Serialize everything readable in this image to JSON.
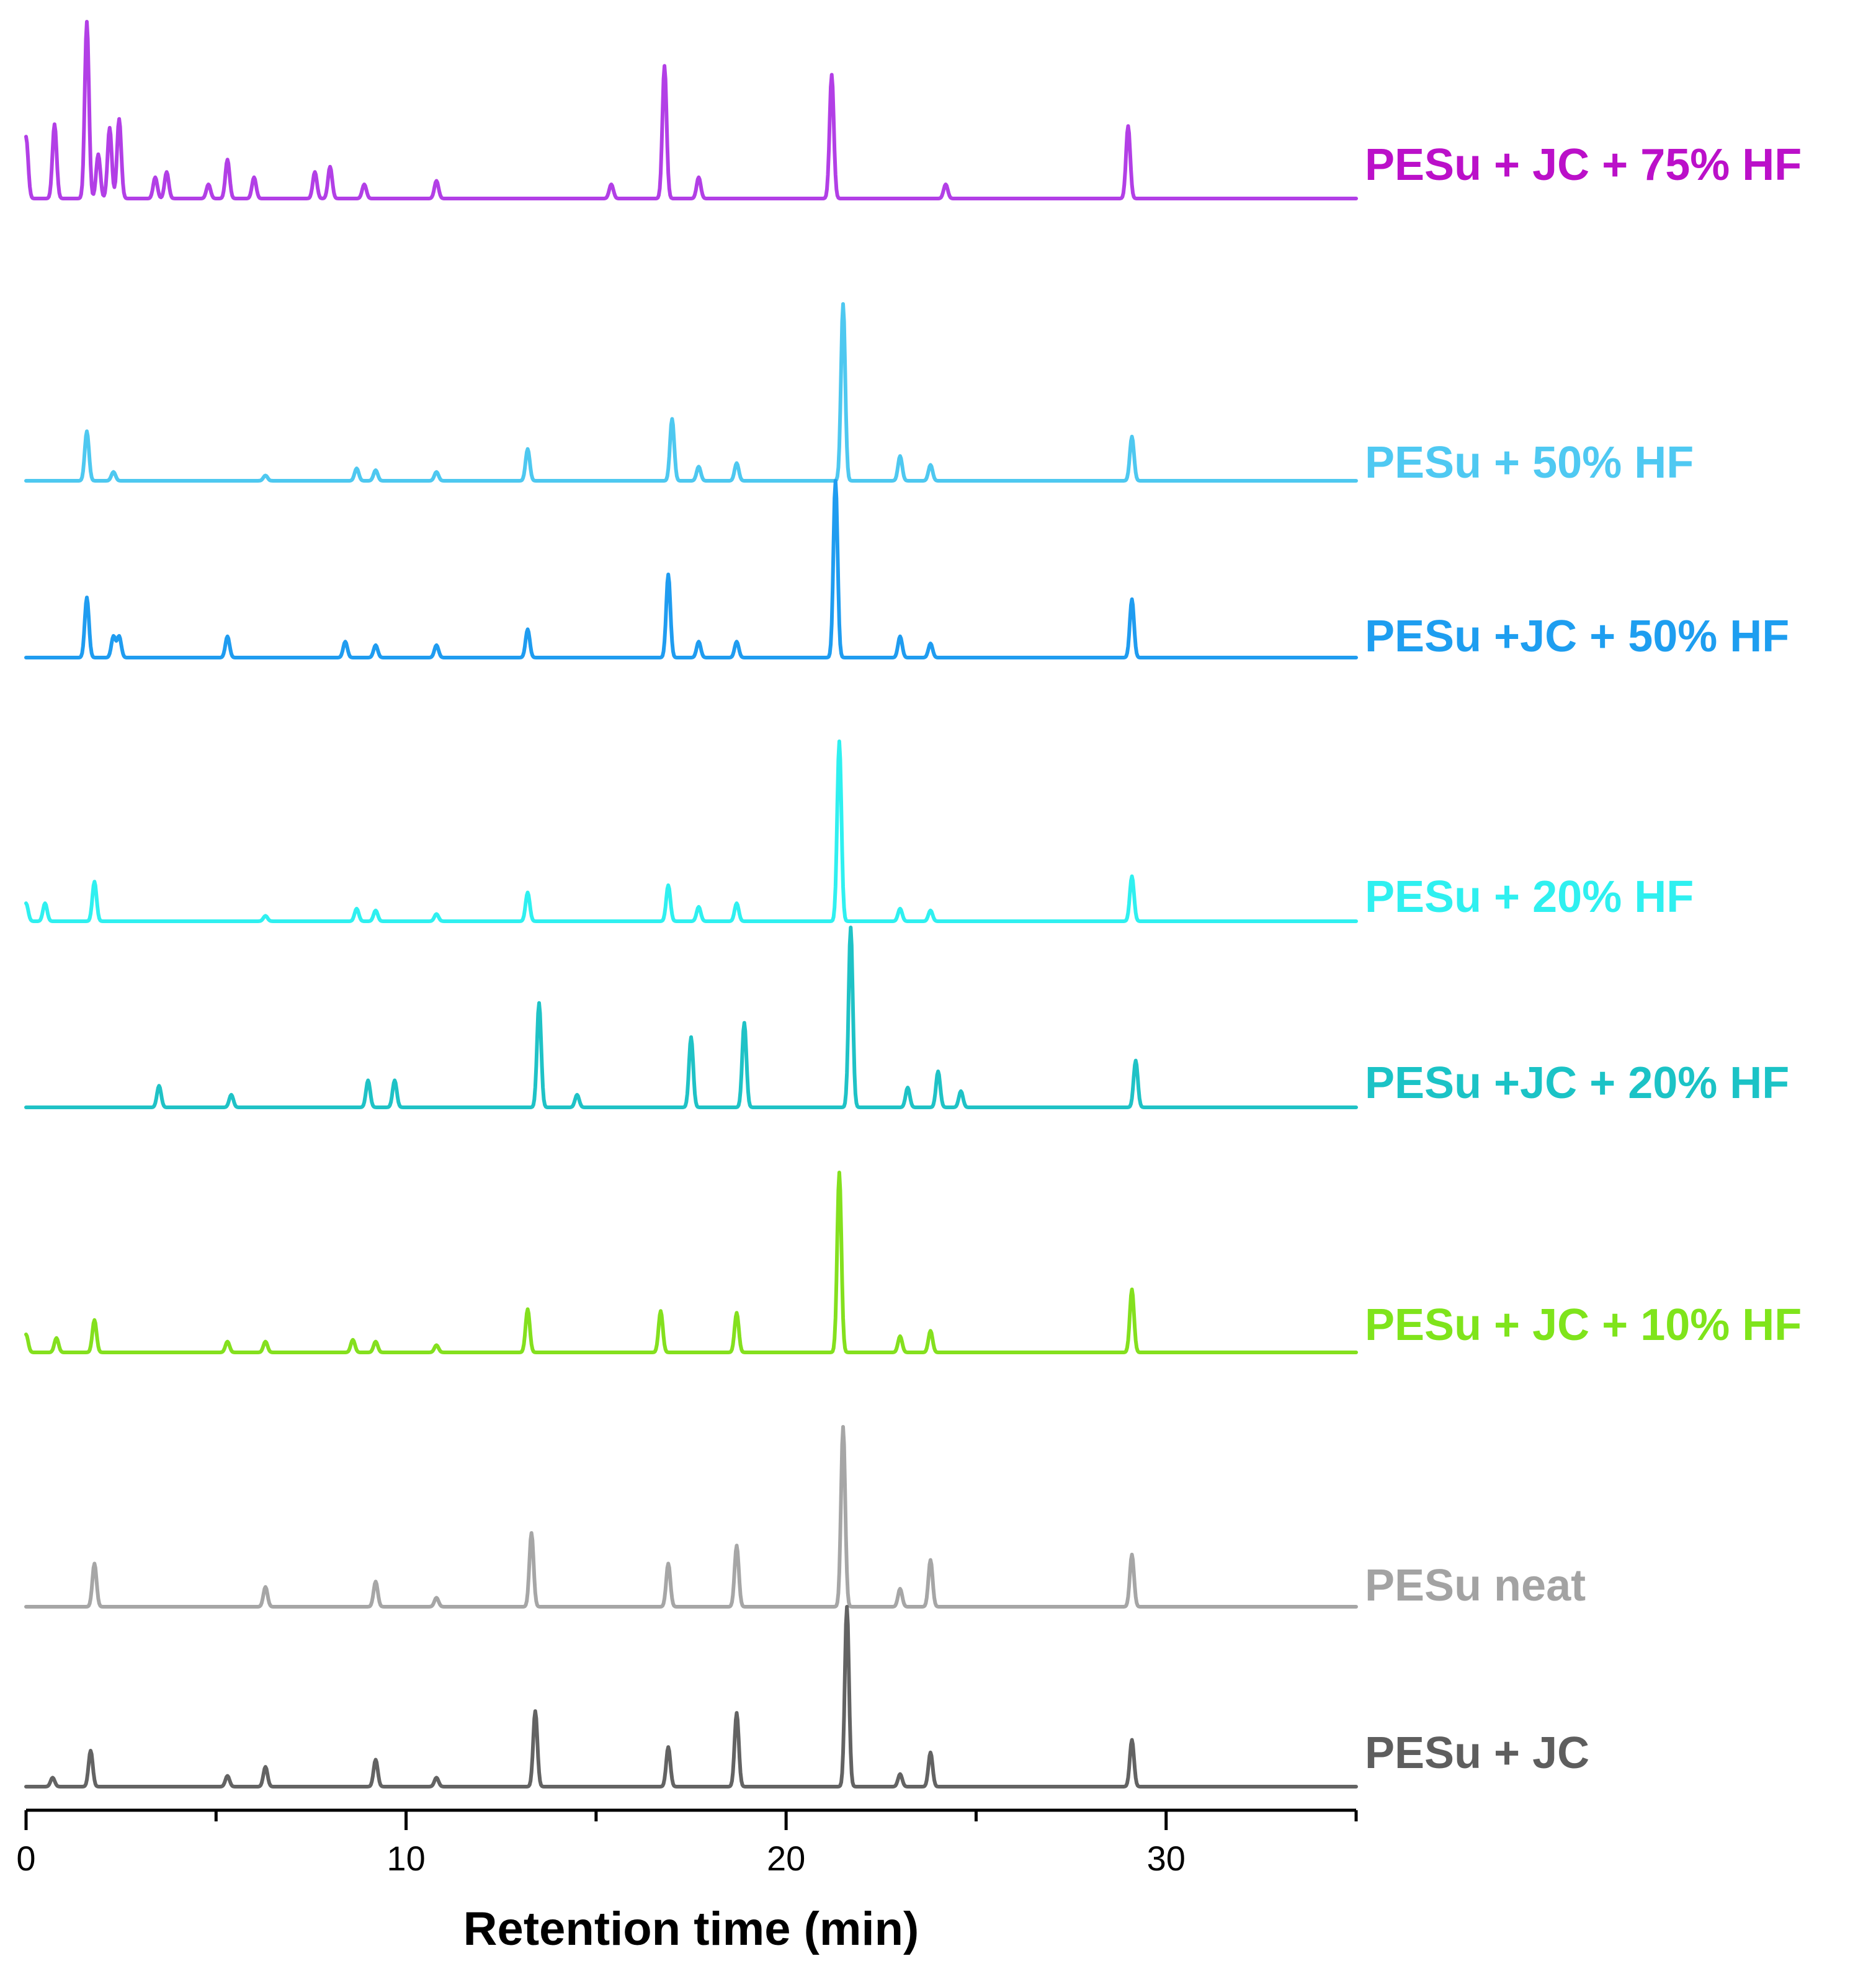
{
  "chart_data": {
    "type": "line",
    "title": "",
    "xlabel": "Retention time (min)",
    "ylabel": "",
    "xlim": [
      0,
      35
    ],
    "x_ticks": [
      0,
      10,
      20,
      30
    ],
    "x_minor_ticks": [
      5,
      15,
      25,
      35
    ],
    "y_axis_visible": false,
    "grid": false,
    "legend": "labels at right of each trace",
    "series": [
      {
        "name": "PESu + JC + 75% HF",
        "color": "#b23fe6",
        "label_color": "#bb10c9",
        "peaks": [
          [
            0,
            0.35
          ],
          [
            0.75,
            0.42
          ],
          [
            1.6,
            1.0
          ],
          [
            1.9,
            0.25
          ],
          [
            2.2,
            0.4
          ],
          [
            2.45,
            0.45
          ],
          [
            3.4,
            0.12
          ],
          [
            3.7,
            0.15
          ],
          [
            4.8,
            0.08
          ],
          [
            5.3,
            0.22
          ],
          [
            6.0,
            0.12
          ],
          [
            7.6,
            0.15
          ],
          [
            8.0,
            0.18
          ],
          [
            8.9,
            0.08
          ],
          [
            10.8,
            0.1
          ],
          [
            15.4,
            0.08
          ],
          [
            16.8,
            0.75
          ],
          [
            17.7,
            0.12
          ],
          [
            21.2,
            0.7
          ],
          [
            24.2,
            0.08
          ],
          [
            29.0,
            0.41
          ]
        ]
      },
      {
        "name": "PESu + 50% HF",
        "color": "#4ec8f0",
        "label_color": "#4fc9f2",
        "peaks": [
          [
            1.6,
            0.28
          ],
          [
            2.3,
            0.05
          ],
          [
            6.3,
            0.03
          ],
          [
            8.7,
            0.07
          ],
          [
            9.2,
            0.06
          ],
          [
            10.8,
            0.05
          ],
          [
            13.2,
            0.18
          ],
          [
            17.0,
            0.35
          ],
          [
            17.7,
            0.08
          ],
          [
            18.7,
            0.1
          ],
          [
            21.5,
            1.0
          ],
          [
            23.0,
            0.14
          ],
          [
            23.8,
            0.09
          ],
          [
            29.1,
            0.25
          ]
        ]
      },
      {
        "name": "PESu +JC + 50% HF",
        "color": "#1f9cf0",
        "label_color": "#1e9ef0",
        "peaks": [
          [
            1.6,
            0.34
          ],
          [
            2.3,
            0.12
          ],
          [
            2.45,
            0.12
          ],
          [
            5.3,
            0.12
          ],
          [
            8.4,
            0.09
          ],
          [
            9.2,
            0.07
          ],
          [
            10.8,
            0.07
          ],
          [
            13.2,
            0.16
          ],
          [
            16.9,
            0.47
          ],
          [
            17.7,
            0.09
          ],
          [
            18.7,
            0.09
          ],
          [
            21.3,
            1.0
          ],
          [
            23.0,
            0.12
          ],
          [
            23.8,
            0.08
          ],
          [
            29.1,
            0.33
          ]
        ]
      },
      {
        "name": "PESu + 20% HF",
        "color": "#2ff0f0",
        "label_color": "#2ff0f0",
        "peaks": [
          [
            0,
            0.1
          ],
          [
            0.5,
            0.1
          ],
          [
            1.8,
            0.22
          ],
          [
            6.3,
            0.03
          ],
          [
            8.7,
            0.07
          ],
          [
            9.2,
            0.06
          ],
          [
            10.8,
            0.04
          ],
          [
            13.2,
            0.16
          ],
          [
            16.9,
            0.2
          ],
          [
            17.7,
            0.08
          ],
          [
            18.7,
            0.1
          ],
          [
            21.4,
            1.0
          ],
          [
            23.0,
            0.07
          ],
          [
            23.8,
            0.06
          ],
          [
            29.1,
            0.25
          ]
        ]
      },
      {
        "name": "PESu +JC + 20% HF",
        "color": "#1fc2c6",
        "label_color": "#1bc3c6",
        "peaks": [
          [
            3.5,
            0.12
          ],
          [
            5.4,
            0.07
          ],
          [
            9.0,
            0.15
          ],
          [
            9.7,
            0.15
          ],
          [
            13.5,
            0.58
          ],
          [
            14.5,
            0.07
          ],
          [
            17.5,
            0.39
          ],
          [
            18.9,
            0.47
          ],
          [
            21.7,
            1.0
          ],
          [
            23.2,
            0.11
          ],
          [
            24.0,
            0.2
          ],
          [
            24.6,
            0.09
          ],
          [
            29.2,
            0.26
          ]
        ]
      },
      {
        "name": "PESu + JC + 10% HF",
        "color": "#84e01e",
        "label_color": "#7fe41b",
        "peaks": [
          [
            0,
            0.1
          ],
          [
            0.8,
            0.08
          ],
          [
            1.8,
            0.18
          ],
          [
            5.3,
            0.06
          ],
          [
            6.3,
            0.06
          ],
          [
            8.6,
            0.07
          ],
          [
            9.2,
            0.06
          ],
          [
            10.8,
            0.04
          ],
          [
            13.2,
            0.24
          ],
          [
            16.7,
            0.23
          ],
          [
            18.7,
            0.22
          ],
          [
            21.4,
            1.0
          ],
          [
            23.0,
            0.09
          ],
          [
            23.8,
            0.12
          ],
          [
            29.1,
            0.35
          ]
        ]
      },
      {
        "name": "PESu neat",
        "color": "#a6a6a6",
        "label_color": "#a3a3a3",
        "peaks": [
          [
            1.8,
            0.24
          ],
          [
            6.3,
            0.11
          ],
          [
            9.2,
            0.14
          ],
          [
            10.8,
            0.05
          ],
          [
            13.3,
            0.41
          ],
          [
            16.9,
            0.24
          ],
          [
            18.7,
            0.34
          ],
          [
            21.5,
            1.0
          ],
          [
            23.0,
            0.1
          ],
          [
            23.8,
            0.26
          ],
          [
            29.1,
            0.29
          ]
        ]
      },
      {
        "name": "PESu + JC",
        "color": "#636363",
        "label_color": "#5e5e5e",
        "peaks": [
          [
            0.7,
            0.05
          ],
          [
            1.7,
            0.2
          ],
          [
            5.3,
            0.06
          ],
          [
            6.3,
            0.11
          ],
          [
            9.2,
            0.15
          ],
          [
            10.8,
            0.05
          ],
          [
            13.4,
            0.42
          ],
          [
            16.9,
            0.22
          ],
          [
            18.7,
            0.41
          ],
          [
            21.6,
            1.0
          ],
          [
            23.0,
            0.07
          ],
          [
            23.8,
            0.19
          ],
          [
            29.1,
            0.26
          ]
        ]
      }
    ]
  }
}
